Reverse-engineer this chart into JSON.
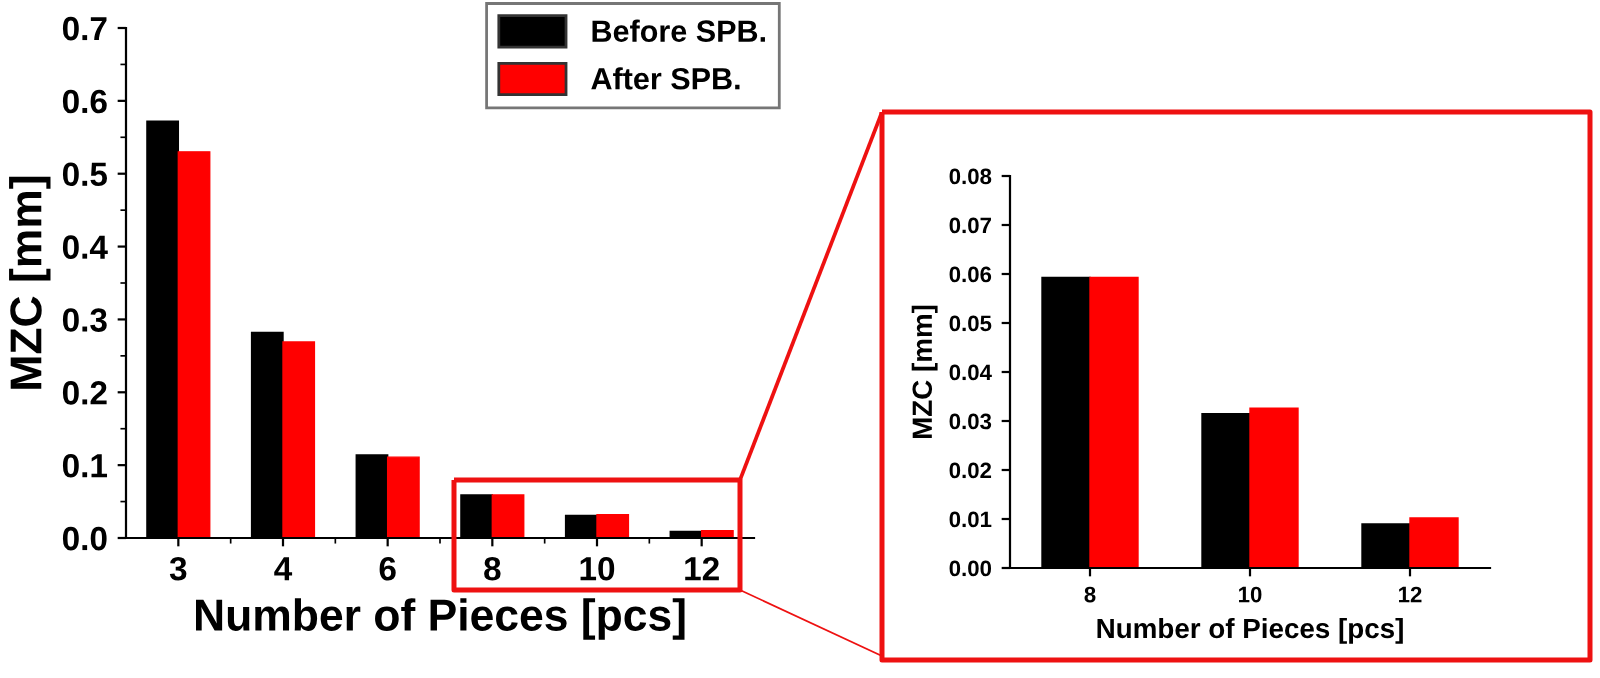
{
  "chart_data": [
    {
      "type": "bar",
      "categories": [
        "3",
        "4",
        "6",
        "8",
        "10",
        "12"
      ],
      "xlabel": "Number of Pieces [pcs]",
      "ylabel": "MZC [mm]",
      "ylim": [
        0,
        0.7
      ],
      "yticks": [
        {
          "value": 0,
          "label": "0.0"
        },
        0.1,
        0.2,
        0.3,
        0.4,
        0.5,
        0.6,
        0.7
      ],
      "legend": "top right",
      "grid": false,
      "series": [
        {
          "name": "Before SPB.",
          "color": "#000000",
          "values": [
            0.572,
            0.282,
            0.114,
            0.059,
            0.031,
            0.009
          ]
        },
        {
          "name": "After SPB.",
          "color": "#ff0000",
          "values": [
            0.53,
            0.269,
            0.111,
            0.059,
            0.032,
            0.01
          ]
        }
      ]
    },
    {
      "type": "bar",
      "categories": [
        "8",
        "10",
        "12"
      ],
      "xlabel": "Number of Pieces [pcs]",
      "ylabel": "MZC [mm]",
      "ylim": [
        0,
        0.08
      ],
      "yticks": [
        {
          "value": 0,
          "label": "0.00"
        },
        0.01,
        0.02,
        0.03,
        0.04,
        0.05,
        0.06,
        0.07,
        0.08
      ],
      "grid": false,
      "series": [
        {
          "color": "#000000",
          "values": [
            0.0593,
            0.0315,
            0.009
          ]
        },
        {
          "color": "#ff0000",
          "values": [
            0.0593,
            0.0326,
            0.0102
          ]
        }
      ]
    }
  ]
}
